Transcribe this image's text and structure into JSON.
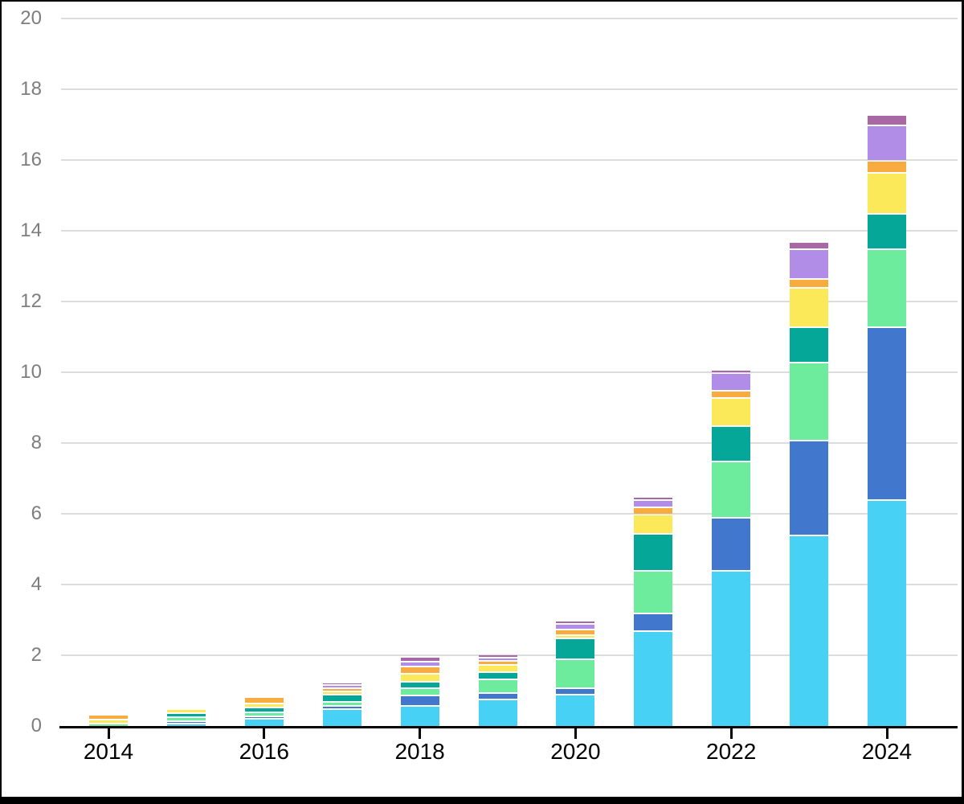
{
  "chart_data": {
    "type": "bar",
    "stacked": true,
    "title": "",
    "xlabel": "",
    "ylabel": "",
    "ylim": [
      0,
      20
    ],
    "y_ticks": [
      0,
      2,
      4,
      6,
      8,
      10,
      12,
      14,
      16,
      18,
      20
    ],
    "grid": true,
    "legend": false,
    "categories": [
      "2014",
      "2015",
      "2016",
      "2017",
      "2018",
      "2019",
      "2020",
      "2021",
      "2022",
      "2023",
      "2024"
    ],
    "x_tick_labels": [
      "2014",
      "2016",
      "2018",
      "2020",
      "2022",
      "2024"
    ],
    "series": [
      {
        "name": "light-blue-segment",
        "color": "#47D1F5",
        "values": [
          0,
          0.08,
          0.22,
          0.5,
          0.6,
          0.78,
          0.9,
          2.7,
          4.4,
          5.4,
          6.4
        ]
      },
      {
        "name": "royal-blue-segment",
        "color": "#4277CE",
        "values": [
          0,
          0.07,
          0.08,
          0.08,
          0.28,
          0.17,
          0.2,
          0.5,
          1.5,
          2.7,
          4.9
        ]
      },
      {
        "name": "green-segment",
        "color": "#6CEC9C",
        "values": [
          0.1,
          0.12,
          0.12,
          0.12,
          0.2,
          0.4,
          0.8,
          1.2,
          1.6,
          2.2,
          2.2
        ]
      },
      {
        "name": "teal-segment",
        "color": "#05A898",
        "values": [
          0,
          0.11,
          0.13,
          0.2,
          0.2,
          0.2,
          0.6,
          1.05,
          1.0,
          1.0,
          1.0
        ]
      },
      {
        "name": "yellow-segment",
        "color": "#FBE95A",
        "values": [
          0.1,
          0.12,
          0.1,
          0.1,
          0.22,
          0.2,
          0.1,
          0.55,
          0.8,
          1.1,
          1.15
        ]
      },
      {
        "name": "orange-segment",
        "color": "#F8AC40",
        "values": [
          0.15,
          0,
          0.2,
          0.1,
          0.2,
          0.11,
          0.15,
          0.2,
          0.2,
          0.25,
          0.35
        ]
      },
      {
        "name": "purple-segment",
        "color": "#B18DE8",
        "values": [
          0,
          0,
          0,
          0.08,
          0.15,
          0.09,
          0.15,
          0.2,
          0.5,
          0.85,
          1.0
        ]
      },
      {
        "name": "plum-segment",
        "color": "#A868A6",
        "values": [
          0,
          0,
          0,
          0.03,
          0.13,
          0.1,
          0.1,
          0.1,
          0.1,
          0.2,
          0.3
        ]
      }
    ],
    "totals": [
      0.35,
      0.5,
      0.85,
      1.21,
      1.98,
      2.05,
      3.0,
      6.5,
      10.1,
      13.7,
      17.3
    ],
    "colors": {
      "grid": "#dcdcdc",
      "axis": "#000000",
      "y_label_text": "#7d7d7d",
      "x_label_text": "#000000",
      "background": "#ffffff",
      "frame_border": "#000000"
    }
  }
}
